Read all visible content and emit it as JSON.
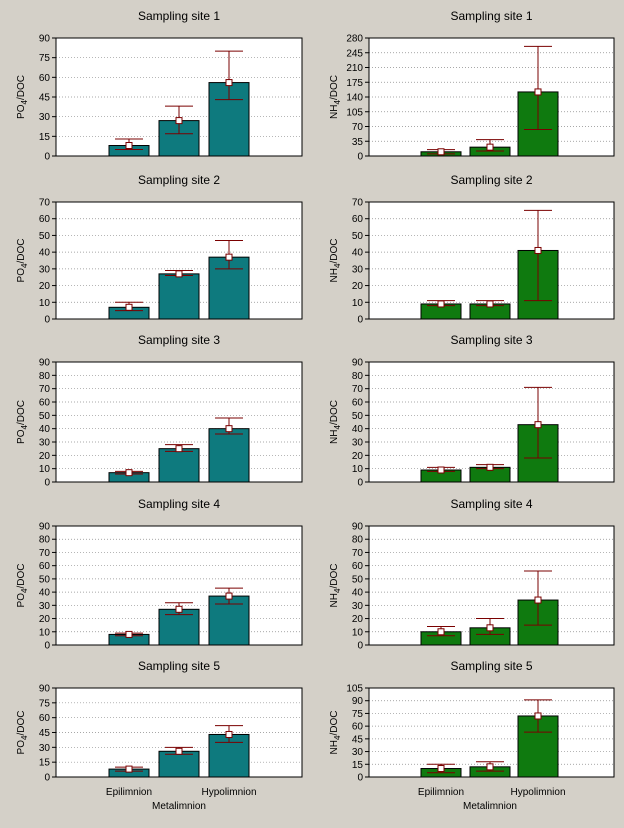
{
  "chart_data": [
    {
      "type": "bar",
      "title": "Sampling site 1",
      "ylabel": [
        "PO",
        "4",
        "/DOC"
      ],
      "categories": [
        "Epilimnion",
        "Metalimnion",
        "Hypolimnion"
      ],
      "values": [
        8,
        27,
        56
      ],
      "error_low": [
        5,
        17,
        43
      ],
      "error_high": [
        13,
        38,
        80
      ],
      "yticks": [
        0,
        15,
        30,
        45,
        60,
        75,
        90
      ],
      "ylim": [
        0,
        90
      ],
      "color": "#0e7a7e"
    },
    {
      "type": "bar",
      "title": "Sampling site 1",
      "ylabel": [
        "NH",
        "4",
        "/DOC"
      ],
      "categories": [
        "Epilimnion",
        "Metalimnion",
        "Hypolimnion"
      ],
      "values": [
        10,
        21,
        152
      ],
      "error_low": [
        5,
        12,
        63
      ],
      "error_high": [
        15,
        39,
        260
      ],
      "yticks": [
        0,
        35,
        70,
        105,
        140,
        175,
        210,
        245,
        280
      ],
      "ylim": [
        0,
        280
      ],
      "color": "#0f7a0f"
    },
    {
      "type": "bar",
      "title": "Sampling site 2",
      "ylabel": [
        "PO",
        "4",
        "/DOC"
      ],
      "categories": [
        "Epilimnion",
        "Metalimnion",
        "Hypolimnion"
      ],
      "values": [
        7,
        27,
        37
      ],
      "error_low": [
        5,
        26,
        30
      ],
      "error_high": [
        10,
        29,
        47
      ],
      "yticks": [
        0,
        10,
        20,
        30,
        40,
        50,
        60,
        70
      ],
      "ylim": [
        0,
        70
      ],
      "color": "#0e7a7e"
    },
    {
      "type": "bar",
      "title": "Sampling site 2",
      "ylabel": [
        "NH",
        "4",
        "/DOC"
      ],
      "categories": [
        "Epilimnion",
        "Metalimnion",
        "Hypolimnion"
      ],
      "values": [
        9,
        9,
        41
      ],
      "error_low": [
        8,
        8,
        11
      ],
      "error_high": [
        11,
        11,
        65
      ],
      "yticks": [
        0,
        10,
        20,
        30,
        40,
        50,
        60,
        70
      ],
      "ylim": [
        0,
        70
      ],
      "color": "#0f7a0f"
    },
    {
      "type": "bar",
      "title": "Sampling site 3",
      "ylabel": [
        "PO",
        "4",
        "/DOC"
      ],
      "categories": [
        "Epilimnion",
        "Metalimnion",
        "Hypolimnion"
      ],
      "values": [
        7,
        25,
        40
      ],
      "error_low": [
        6,
        23,
        36
      ],
      "error_high": [
        8,
        28,
        48
      ],
      "yticks": [
        0,
        10,
        20,
        30,
        40,
        50,
        60,
        70,
        80,
        90
      ],
      "ylim": [
        0,
        90
      ],
      "color": "#0e7a7e"
    },
    {
      "type": "bar",
      "title": "Sampling site 3",
      "ylabel": [
        "NH",
        "4",
        "/DOC"
      ],
      "categories": [
        "Epilimnion",
        "Metalimnion",
        "Hypolimnion"
      ],
      "values": [
        9,
        11,
        43
      ],
      "error_low": [
        8,
        10,
        18
      ],
      "error_high": [
        11,
        13,
        71
      ],
      "yticks": [
        0,
        10,
        20,
        30,
        40,
        50,
        60,
        70,
        80,
        90
      ],
      "ylim": [
        0,
        90
      ],
      "color": "#0f7a0f"
    },
    {
      "type": "bar",
      "title": "Sampling site 4",
      "ylabel": [
        "PO",
        "4",
        "/DOC"
      ],
      "categories": [
        "Epilimnion",
        "Metalimnion",
        "Hypolimnion"
      ],
      "values": [
        8,
        27,
        37
      ],
      "error_low": [
        7,
        23,
        31
      ],
      "error_high": [
        9,
        32,
        43
      ],
      "yticks": [
        0,
        10,
        20,
        30,
        40,
        50,
        60,
        70,
        80,
        90
      ],
      "ylim": [
        0,
        90
      ],
      "color": "#0e7a7e"
    },
    {
      "type": "bar",
      "title": "Sampling site 4",
      "ylabel": [
        "NH",
        "4",
        "/DOC"
      ],
      "categories": [
        "Epilimnion",
        "Metalimnion",
        "Hypolimnion"
      ],
      "values": [
        10,
        13,
        34
      ],
      "error_low": [
        7,
        8,
        15
      ],
      "error_high": [
        14,
        20,
        56
      ],
      "yticks": [
        0,
        10,
        20,
        30,
        40,
        50,
        60,
        70,
        80,
        90
      ],
      "ylim": [
        0,
        90
      ],
      "color": "#0f7a0f"
    },
    {
      "type": "bar",
      "title": "Sampling site 5",
      "ylabel": [
        "PO",
        "4",
        "/DOC"
      ],
      "categories": [
        "Epilimnion",
        "Metalimnion",
        "Hypolimnion"
      ],
      "values": [
        8,
        26,
        43
      ],
      "error_low": [
        6,
        23,
        35
      ],
      "error_high": [
        10,
        30,
        52
      ],
      "yticks": [
        0,
        15,
        30,
        45,
        60,
        75,
        90
      ],
      "ylim": [
        0,
        90
      ],
      "color": "#0e7a7e"
    },
    {
      "type": "bar",
      "title": "Sampling site 5",
      "ylabel": [
        "NH",
        "4",
        "/DOC"
      ],
      "categories": [
        "Epilimnion",
        "Metalimnion",
        "Hypolimnion"
      ],
      "values": [
        10,
        12,
        72
      ],
      "error_low": [
        5,
        7,
        53
      ],
      "error_high": [
        15,
        18,
        91
      ],
      "yticks": [
        0,
        15,
        30,
        45,
        60,
        75,
        90,
        105
      ],
      "ylim": [
        0,
        105
      ],
      "color": "#0f7a0f"
    }
  ],
  "x_category_labels": [
    {
      "text": "Epilimnion",
      "col": "left",
      "idx": 0,
      "line": 0
    },
    {
      "text": "Metalimnion",
      "col": "left",
      "idx": 1,
      "line": 1
    },
    {
      "text": "Hypolimnion",
      "col": "left",
      "idx": 2,
      "line": 0
    },
    {
      "text": "Epilimnion",
      "col": "right",
      "idx": 0,
      "line": 0
    },
    {
      "text": "Metalimnion",
      "col": "right",
      "idx": 1,
      "line": 1
    },
    {
      "text": "Hypolimnion",
      "col": "right",
      "idx": 2,
      "line": 0
    }
  ]
}
